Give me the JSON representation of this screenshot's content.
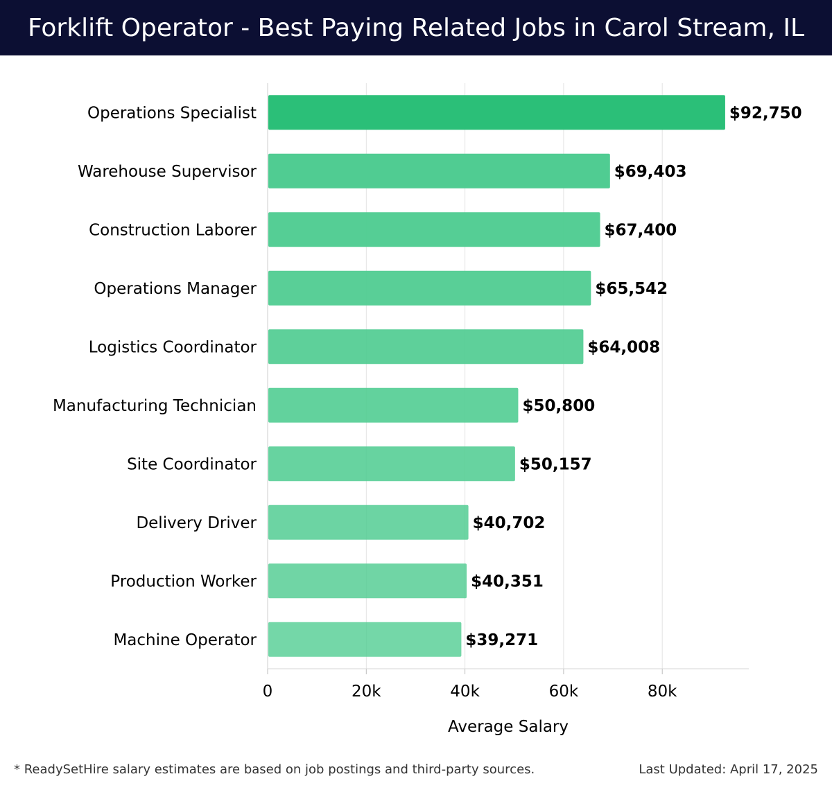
{
  "header": {
    "title": "Forklift Operator - Best Paying Related Jobs in Carol Stream, IL"
  },
  "colors": {
    "header_bg": "#0c0f33",
    "bar_top": "#2bbf78",
    "bar_rest": "#4ccb8f",
    "grid": "#e3e3e3"
  },
  "chart_data": {
    "type": "bar",
    "orientation": "horizontal",
    "categories": [
      "Operations Specialist",
      "Warehouse Supervisor",
      "Construction Laborer",
      "Operations Manager",
      "Logistics Coordinator",
      "Manufacturing Technician",
      "Site Coordinator",
      "Delivery Driver",
      "Production Worker",
      "Machine Operator"
    ],
    "values": [
      92750,
      69403,
      67400,
      65542,
      64008,
      50800,
      50157,
      40702,
      40351,
      39271
    ],
    "value_labels": [
      "$92,750",
      "$69,403",
      "$67,400",
      "$65,542",
      "$64,008",
      "$50,800",
      "$50,157",
      "$40,702",
      "$40,351",
      "$39,271"
    ],
    "xlabel": "Average Salary",
    "ylabel": "",
    "xlim": [
      0,
      97750
    ],
    "xticks": [
      0,
      20000,
      40000,
      60000,
      80000
    ],
    "xtick_labels": [
      "0",
      "20k",
      "40k",
      "60k",
      "80k"
    ],
    "grid": true
  },
  "footer": {
    "note": "* ReadySetHire salary estimates are based on job postings and third-party sources.",
    "updated": "Last Updated: April 17, 2025"
  }
}
